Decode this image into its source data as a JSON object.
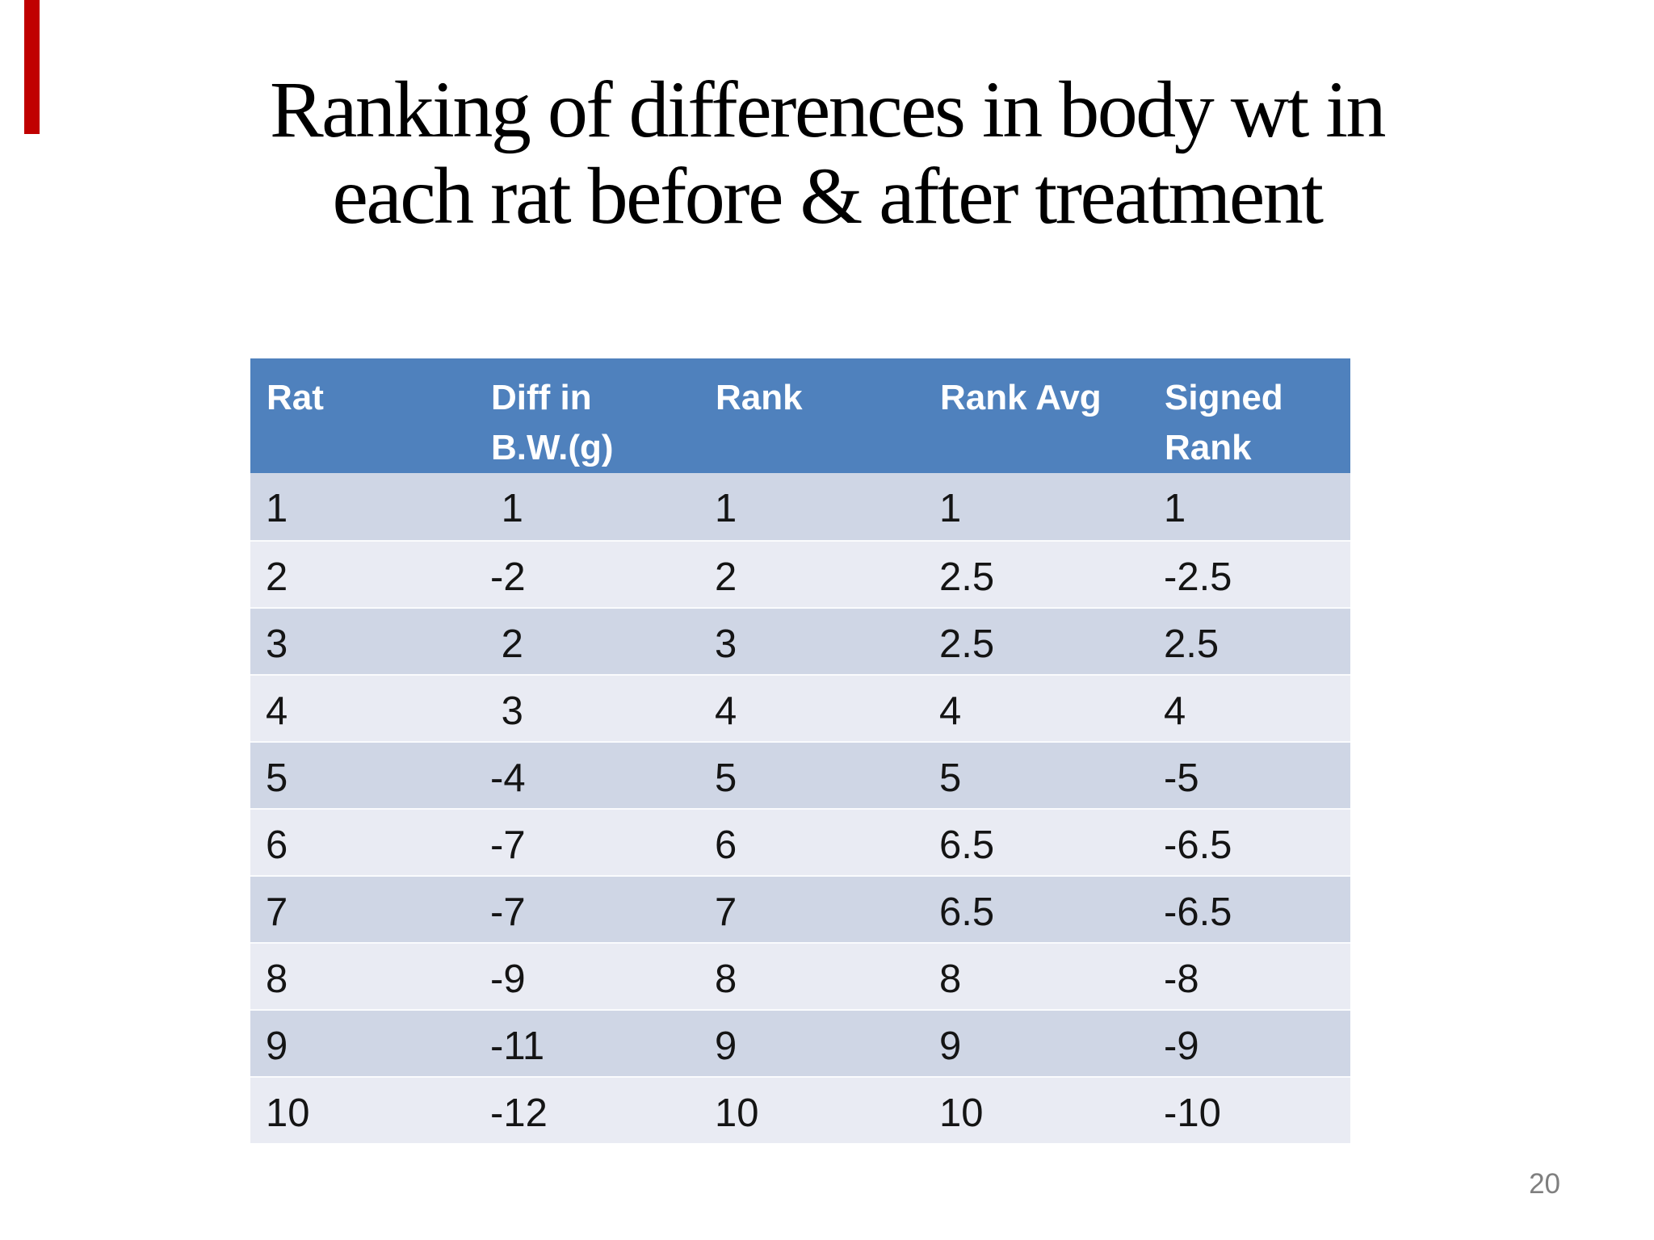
{
  "slide": {
    "title": "Ranking of differences in body wt in\neach rat before & after treatment",
    "page_number": "20",
    "accent_bar_color": "#c00000",
    "background_color": "#ffffff"
  },
  "table": {
    "style": {
      "header_bg": "#4f81bd",
      "header_text_color": "#ffffff",
      "band_dark": "#cfd6e5",
      "band_light": "#e9ebf3",
      "cell_text_color": "#141414"
    },
    "columns": [
      "Rat",
      "Diff in\nB.W.(g)",
      "Rank",
      "Rank Avg",
      "Signed\nRank"
    ],
    "rows": [
      [
        "1",
        " 1",
        "1",
        "1",
        "1"
      ],
      [
        "2",
        "-2",
        "2",
        "2.5",
        "-2.5"
      ],
      [
        "3",
        " 2",
        "3",
        "2.5",
        "2.5"
      ],
      [
        "4",
        " 3",
        "4",
        "4",
        "4"
      ],
      [
        "5",
        "-4",
        "5",
        "5",
        "-5"
      ],
      [
        "6",
        "-7",
        "6",
        "6.5",
        "-6.5"
      ],
      [
        "7",
        "-7",
        "7",
        "6.5",
        "-6.5"
      ],
      [
        "8",
        "-9",
        "8",
        "8",
        "-8"
      ],
      [
        "9",
        "-11",
        "9",
        "9",
        "-9"
      ],
      [
        "10",
        "-12",
        "10",
        "10",
        "-10"
      ]
    ]
  }
}
